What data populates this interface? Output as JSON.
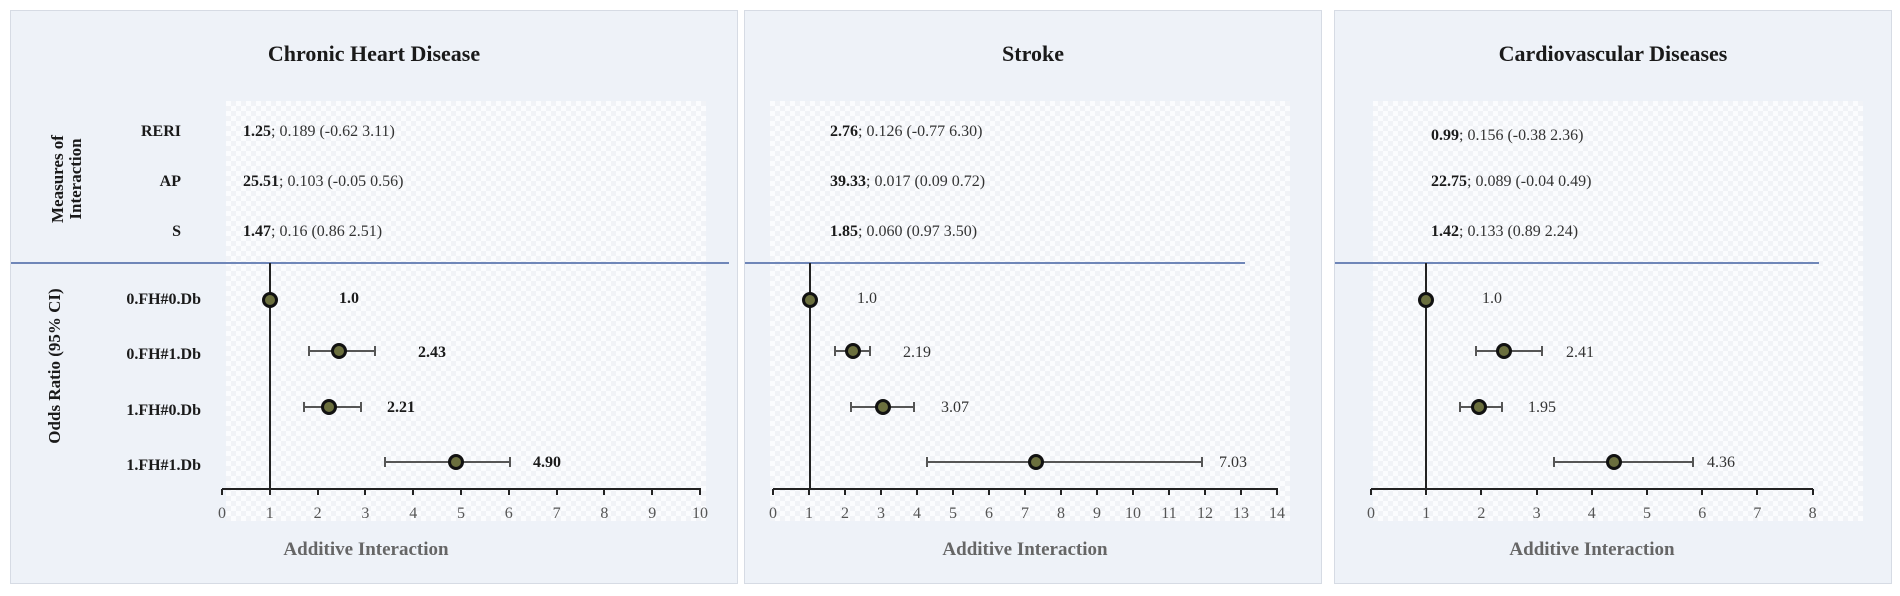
{
  "figure": {
    "row_group_labels": {
      "measures": [
        "Measures of",
        "Interaction"
      ],
      "odds": "Odds Ratio (95% CI)"
    },
    "measure_labels": [
      "RERI",
      "AP",
      "S"
    ],
    "row_labels": [
      "0.FH#0.Db",
      "0.FH#1.Db",
      "1.FH#0.Db",
      "1.FH#1.Db"
    ],
    "x_axis_title": "Additive Interaction",
    "colors": {
      "panel_bg": "#eef2f8",
      "divider": "#6f86b8",
      "marker_fill": "#6b6f3e",
      "marker_edge": "#111111",
      "whisker": "#555555"
    }
  },
  "panels": [
    {
      "title": "Chronic Heart Disease",
      "measures": [
        {
          "label": "RERI",
          "estimate": "1.25",
          "rest": "; 0.189 (-0.62 3.11)"
        },
        {
          "label": "AP",
          "estimate": "25.51",
          "rest": "; 0.103 (-0.05 0.56)"
        },
        {
          "label": "S",
          "estimate": "1.47",
          "rest": "; 0.16 (0.86 2.51)"
        }
      ],
      "or_labels": [
        "1.0",
        "2.43",
        "2.21",
        "4.90"
      ],
      "ticks": [
        "0",
        "1",
        "2",
        "3",
        "4",
        "5",
        "6",
        "7",
        "8",
        "9",
        "10"
      ]
    },
    {
      "title": "Stroke",
      "measures": [
        {
          "label": "RERI",
          "estimate": "2.76",
          "rest": "; 0.126 (-0.77 6.30)"
        },
        {
          "label": "AP",
          "estimate": "39.33",
          "rest": "; 0.017 (0.09 0.72)"
        },
        {
          "label": "S",
          "estimate": "1.85",
          "rest": "; 0.060 (0.97 3.50)"
        }
      ],
      "or_labels": [
        "1.0",
        "2.19",
        "3.07",
        "7.03"
      ],
      "ticks": [
        "0",
        "1",
        "2",
        "3",
        "4",
        "5",
        "6",
        "7",
        "8",
        "9",
        "10",
        "11",
        "12",
        "13",
        "14"
      ]
    },
    {
      "title": "Cardiovascular Diseases",
      "measures": [
        {
          "label": "RERI",
          "estimate": "0.99",
          "rest": "; 0.156 (-0.38 2.36)"
        },
        {
          "label": "AP",
          "estimate": "22.75",
          "rest": "; 0.089 (-0.04 0.49)"
        },
        {
          "label": "S",
          "estimate": "1.42",
          "rest": "; 0.133 (0.89 2.24)"
        }
      ],
      "or_labels": [
        "1.0",
        "2.41",
        "1.95",
        "4.36"
      ],
      "ticks": [
        "0",
        "1",
        "2",
        "3",
        "4",
        "5",
        "6",
        "7",
        "8"
      ]
    }
  ],
  "chart_data": [
    {
      "type": "scatter",
      "subtype": "forest_plot",
      "title": "Chronic Heart Disease",
      "xlabel": "Additive Interaction",
      "ylabel": "Odds Ratio (95% CI)",
      "xlim": [
        0,
        10
      ],
      "reference_line": 1,
      "categories": [
        "0.FH#0.Db",
        "0.FH#1.Db",
        "1.FH#0.Db",
        "1.FH#1.Db"
      ],
      "values": [
        1.0,
        2.43,
        2.21,
        4.9
      ],
      "ci_low": [
        1.0,
        1.8,
        1.7,
        3.4
      ],
      "ci_high": [
        1.0,
        3.2,
        2.9,
        7.0
      ],
      "interaction_measures": {
        "RERI": {
          "estimate": 1.25,
          "p": 0.189,
          "ci": [
            -0.62,
            3.11
          ]
        },
        "AP": {
          "estimate": 25.51,
          "p": 0.103,
          "ci": [
            -0.05,
            0.56
          ]
        },
        "S": {
          "estimate": 1.47,
          "p": 0.16,
          "ci": [
            0.86,
            2.51
          ]
        }
      }
    },
    {
      "type": "scatter",
      "subtype": "forest_plot",
      "title": "Stroke",
      "xlabel": "Additive Interaction",
      "ylabel": "Odds Ratio (95% CI)",
      "xlim": [
        0,
        14
      ],
      "reference_line": 1,
      "categories": [
        "0.FH#0.Db",
        "0.FH#1.Db",
        "1.FH#0.Db",
        "1.FH#1.Db"
      ],
      "values": [
        1.0,
        2.19,
        3.07,
        7.03
      ],
      "ci_low": [
        1.0,
        1.7,
        2.2,
        4.25
      ],
      "ci_high": [
        1.0,
        2.8,
        4.2,
        11.65
      ],
      "interaction_measures": {
        "RERI": {
          "estimate": 2.76,
          "p": 0.126,
          "ci": [
            -0.77,
            6.3
          ]
        },
        "AP": {
          "estimate": 39.33,
          "p": 0.017,
          "ci": [
            0.09,
            0.72
          ]
        },
        "S": {
          "estimate": 1.85,
          "p": 0.06,
          "ci": [
            0.97,
            3.5
          ]
        }
      }
    },
    {
      "type": "scatter",
      "subtype": "forest_plot",
      "title": "Cardiovascular Diseases",
      "xlabel": "Additive Interaction",
      "ylabel": "Odds Ratio (95% CI)",
      "xlim": [
        0,
        8
      ],
      "reference_line": 1,
      "categories": [
        "0.FH#0.Db",
        "0.FH#1.Db",
        "1.FH#0.Db",
        "1.FH#1.Db"
      ],
      "values": [
        1.0,
        2.41,
        1.95,
        4.36
      ],
      "ci_low": [
        1.0,
        1.9,
        1.6,
        3.3
      ],
      "ci_high": [
        1.0,
        3.1,
        2.4,
        5.8
      ],
      "interaction_measures": {
        "RERI": {
          "estimate": 0.99,
          "p": 0.156,
          "ci": [
            -0.38,
            2.36
          ]
        },
        "AP": {
          "estimate": 22.75,
          "p": 0.089,
          "ci": [
            -0.04,
            0.49
          ]
        },
        "S": {
          "estimate": 1.42,
          "p": 0.133,
          "ci": [
            0.89,
            2.24
          ]
        }
      }
    }
  ]
}
